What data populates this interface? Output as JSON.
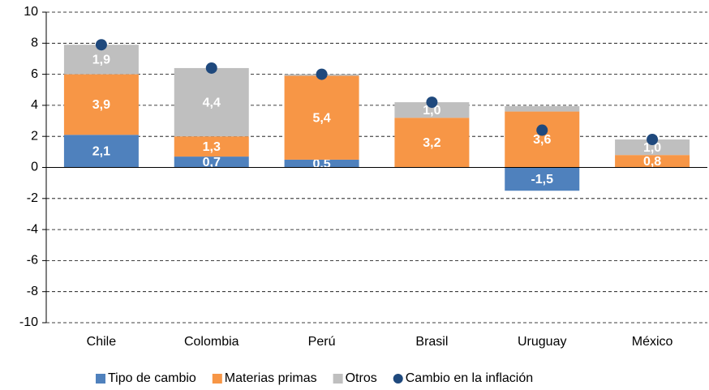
{
  "chart_data": {
    "type": "bar",
    "stacked": true,
    "categories": [
      "Chile",
      "Colombia",
      "Perú",
      "Brasil",
      "Uruguay",
      "México"
    ],
    "series": [
      {
        "name": "Tipo de cambio",
        "color": "#4f81bd",
        "values": [
          2.1,
          0.7,
          0.5,
          null,
          -1.5,
          null
        ],
        "value_labels": [
          "2,1",
          "0,7",
          "0,5",
          null,
          "-1,5",
          null
        ]
      },
      {
        "name": "Materias primas",
        "color": "#f79646",
        "values": [
          3.9,
          1.3,
          5.4,
          3.2,
          3.6,
          0.8
        ],
        "value_labels": [
          "3,9",
          "1,3",
          "5,4",
          "3,2",
          "3,6",
          "0,8"
        ]
      },
      {
        "name": "Otros",
        "color": "#bfbfbf",
        "values": [
          1.9,
          4.4,
          0.1,
          1.0,
          0.35,
          1.0
        ],
        "value_labels": [
          "1,9",
          "4,4",
          null,
          "1,0",
          null,
          "1,0"
        ]
      },
      {
        "name": "Cambio en la inflación",
        "color": "#1f497d",
        "type": "scatter",
        "values": [
          7.9,
          6.4,
          6.0,
          4.2,
          2.4,
          1.8
        ]
      }
    ],
    "ylim": [
      -10,
      10
    ],
    "yticks": [
      -10,
      -8,
      -6,
      -4,
      -2,
      0,
      2,
      4,
      6,
      8,
      10
    ],
    "grid": true,
    "legend": "bottom"
  }
}
